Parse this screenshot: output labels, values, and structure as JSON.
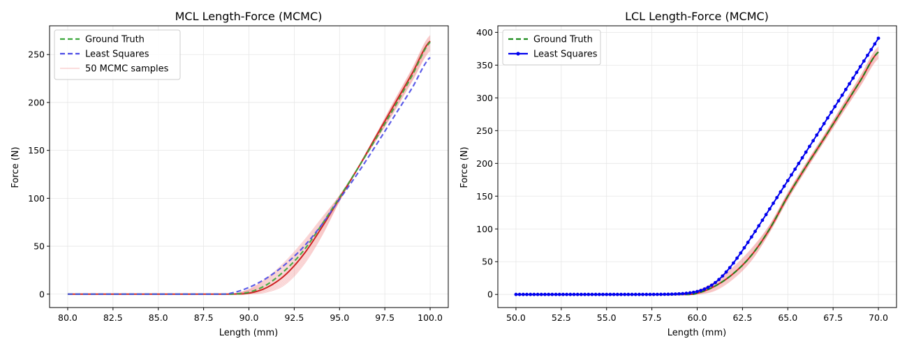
{
  "chart_data": [
    {
      "type": "line",
      "title": "MCL Length-Force (MCMC)",
      "xlabel": "Length (mm)",
      "ylabel": "Force (N)",
      "xlim": [
        79,
        101
      ],
      "ylim": [
        -14,
        280
      ],
      "xticks": [
        80.0,
        82.5,
        85.0,
        87.5,
        90.0,
        92.5,
        95.0,
        97.5,
        100.0
      ],
      "xtick_labels": [
        "80.0",
        "82.5",
        "85.0",
        "87.5",
        "90.0",
        "92.5",
        "95.0",
        "97.5",
        "100.0"
      ],
      "yticks": [
        0,
        50,
        100,
        150,
        200,
        250
      ],
      "ytick_labels": [
        "0",
        "50",
        "100",
        "150",
        "200",
        "250"
      ],
      "grid": true,
      "legend_position": "upper-left",
      "series": [
        {
          "name": "Ground Truth",
          "color": "#3aa63a",
          "style": "dashed",
          "x": [
            80,
            89,
            90,
            91,
            92,
            93,
            94,
            95,
            96,
            97,
            98,
            99,
            100
          ],
          "y": [
            0,
            0,
            2,
            10,
            25,
            45,
            72,
            101,
            131,
            162,
            194,
            228,
            263
          ]
        },
        {
          "name": "Least Squares",
          "color": "#4a4ae6",
          "style": "dashed",
          "x": [
            80,
            88.5,
            89,
            90,
            91,
            92,
            93,
            94,
            95,
            96,
            97,
            98,
            99,
            100
          ],
          "y": [
            0,
            0,
            1,
            7,
            17,
            31,
            49,
            72,
            99,
            126,
            155,
            185,
            215,
            247
          ]
        },
        {
          "name": "50 MCMC samples",
          "color": "#f08080",
          "style": "band",
          "x": [
            80,
            89,
            90,
            91,
            92,
            93,
            94,
            95,
            96,
            97,
            98,
            99,
            100
          ],
          "y_low": [
            0,
            0,
            0,
            2,
            10,
            30,
            60,
            97,
            130,
            160,
            190,
            222,
            254
          ],
          "y_high": [
            0,
            0,
            5,
            17,
            34,
            55,
            79,
            103,
            132,
            166,
            201,
            235,
            270
          ]
        },
        {
          "name": "",
          "color": "#cc2222",
          "style": "solid",
          "x": [
            80,
            89,
            90,
            91,
            92,
            93,
            94,
            95,
            96,
            97,
            98,
            99,
            100
          ],
          "y": [
            0,
            0,
            1,
            7,
            20,
            41,
            69,
            100,
            131,
            164,
            197,
            230,
            264
          ]
        }
      ]
    },
    {
      "type": "line",
      "title": "LCL Length-Force (MCMC)",
      "xlabel": "Length (mm)",
      "ylabel": "Force (N)",
      "xlim": [
        49,
        71
      ],
      "ylim": [
        -20,
        410
      ],
      "xticks": [
        50.0,
        52.5,
        55.0,
        57.5,
        60.0,
        62.5,
        65.0,
        67.5,
        70.0
      ],
      "xtick_labels": [
        "50.0",
        "52.5",
        "55.0",
        "57.5",
        "60.0",
        "62.5",
        "65.0",
        "67.5",
        "70.0"
      ],
      "yticks": [
        0,
        50,
        100,
        150,
        200,
        250,
        300,
        350,
        400
      ],
      "ytick_labels": [
        "0",
        "50",
        "100",
        "150",
        "200",
        "250",
        "300",
        "350",
        "400"
      ],
      "grid": true,
      "legend_position": "upper-left",
      "series": [
        {
          "name": "Ground Truth",
          "color": "#1a8a1a",
          "style": "dashed",
          "x": [
            50,
            59.5,
            60,
            61,
            62,
            63,
            64,
            65,
            66,
            67,
            68,
            69,
            70
          ],
          "y": [
            0,
            0,
            2,
            13,
            32,
            60,
            100,
            150,
            195,
            238,
            282,
            326,
            370
          ]
        },
        {
          "name": "Least Squares",
          "color": "#0000ee",
          "style": "solid-markers",
          "x_start": 50,
          "x_end": 70,
          "x_step": 0.2,
          "x0": 61,
          "slope": 43.5,
          "y_at_end": 391
        },
        {
          "name": "",
          "color": "#f08080",
          "style": "band",
          "x": [
            50,
            59.3,
            60,
            61,
            62,
            63,
            64,
            65,
            66,
            67,
            68,
            69,
            70
          ],
          "y_low": [
            0,
            0,
            0,
            6,
            24,
            52,
            95,
            145,
            190,
            233,
            276,
            318,
            360
          ],
          "y_high": [
            0,
            0,
            6,
            20,
            42,
            70,
            106,
            155,
            200,
            243,
            288,
            333,
            378
          ]
        },
        {
          "name": "",
          "color": "#cc2222",
          "style": "solid",
          "x": [
            50,
            59.5,
            60,
            61,
            62,
            63,
            64,
            65,
            66,
            67,
            68,
            69,
            70
          ],
          "y": [
            0,
            0,
            2,
            13,
            32,
            60,
            100,
            150,
            195,
            238,
            282,
            326,
            370
          ]
        }
      ]
    }
  ]
}
